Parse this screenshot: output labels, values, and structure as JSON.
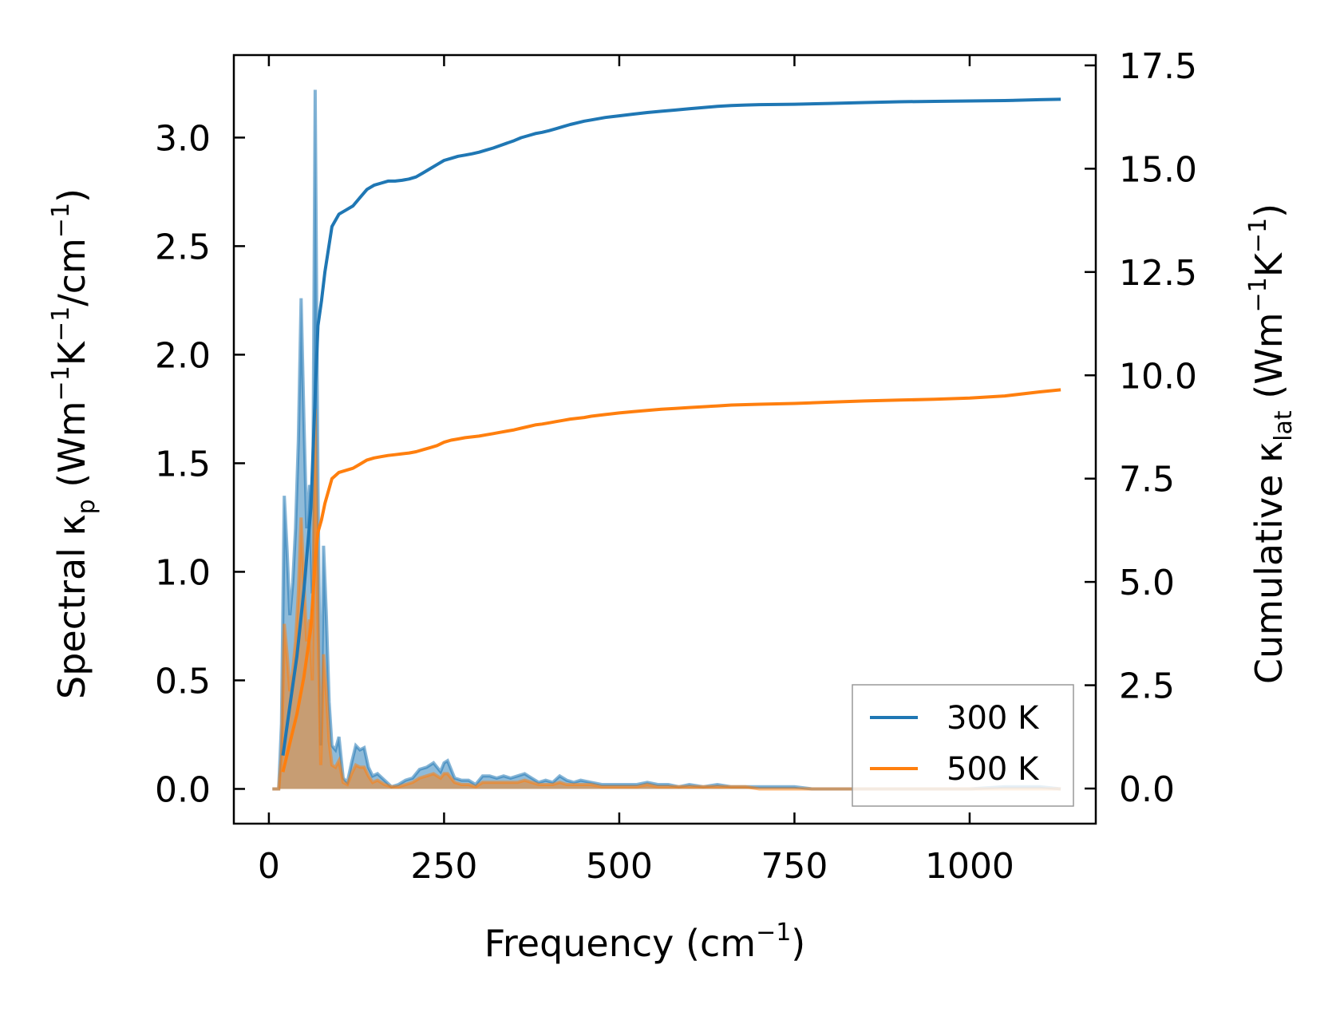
{
  "chart_data": {
    "type": "area",
    "x_axis": {
      "label": "Frequency (cm",
      "label_sup": "−1",
      "label_end": ")",
      "range": [
        -50,
        1180
      ],
      "ticks": [
        0,
        250,
        500,
        750,
        1000
      ],
      "tick_labels": [
        "0",
        "250",
        "500",
        "750",
        "1000"
      ]
    },
    "y_left": {
      "label_parts": [
        "Spectral κ",
        "p",
        " (Wm",
        "−1",
        "K",
        "−1",
        "/cm",
        "−1",
        ")"
      ],
      "range": [
        -0.16,
        3.38
      ],
      "ticks": [
        0.0,
        0.5,
        1.0,
        1.5,
        2.0,
        2.5,
        3.0
      ],
      "tick_labels": [
        "0.0",
        "0.5",
        "1.0",
        "1.5",
        "2.0",
        "2.5",
        "3.0"
      ]
    },
    "y_right": {
      "label_parts": [
        "Cumulative κ",
        "lat",
        " (Wm",
        "−1",
        "K",
        "−1",
        ")"
      ],
      "range": [
        -0.85,
        17.75
      ],
      "ticks": [
        0.0,
        2.5,
        5.0,
        7.5,
        10.0,
        12.5,
        15.0,
        17.5
      ],
      "tick_labels": [
        "0.0",
        "2.5",
        "5.0",
        "7.5",
        "10.0",
        "12.5",
        "15.0",
        "17.5"
      ]
    },
    "legend": {
      "placement": "lower-right",
      "entries": [
        "300 K",
        "500 K"
      ]
    },
    "series": [
      {
        "name": "300 K",
        "color": "#1f77b4",
        "spectral_x": [
          5,
          14,
          18,
          22,
          26,
          30,
          34,
          38,
          42,
          46,
          50,
          54,
          58,
          62,
          66,
          70,
          74,
          78,
          82,
          86,
          90,
          95,
          100,
          106,
          112,
          118,
          124,
          130,
          136,
          142,
          148,
          155,
          165,
          175,
          185,
          195,
          205,
          215,
          225,
          235,
          245,
          250,
          255,
          265,
          275,
          285,
          295,
          305,
          315,
          325,
          335,
          345,
          355,
          365,
          375,
          385,
          395,
          405,
          415,
          425,
          435,
          445,
          460,
          475,
          490,
          500,
          510,
          525,
          540,
          555,
          570,
          585,
          600,
          620,
          640,
          660,
          680,
          700,
          725,
          750,
          775,
          800,
          850,
          900,
          950,
          1000,
          1050,
          1080,
          1100,
          1130
        ],
        "spectral_y": [
          0.0,
          0.0,
          0.3,
          1.35,
          1.1,
          0.8,
          0.95,
          1.2,
          1.6,
          2.26,
          1.7,
          1.2,
          1.4,
          0.9,
          3.22,
          1.4,
          0.2,
          1.12,
          0.8,
          0.4,
          0.2,
          0.18,
          0.24,
          0.05,
          0.03,
          0.12,
          0.2,
          0.18,
          0.19,
          0.1,
          0.06,
          0.07,
          0.04,
          0.01,
          0.02,
          0.04,
          0.05,
          0.09,
          0.1,
          0.12,
          0.08,
          0.12,
          0.13,
          0.05,
          0.04,
          0.04,
          0.02,
          0.06,
          0.06,
          0.05,
          0.06,
          0.05,
          0.06,
          0.07,
          0.05,
          0.03,
          0.04,
          0.03,
          0.06,
          0.04,
          0.03,
          0.04,
          0.03,
          0.02,
          0.02,
          0.02,
          0.02,
          0.02,
          0.03,
          0.02,
          0.02,
          0.01,
          0.02,
          0.01,
          0.02,
          0.01,
          0.01,
          0.01,
          0.01,
          0.01,
          0.0,
          0.0,
          0.0,
          0.0,
          0.0,
          0.0,
          0.01,
          0.01,
          0.01,
          0.0
        ],
        "cumulative_x": [
          20,
          30,
          40,
          50,
          60,
          66,
          70,
          75,
          80,
          90,
          100,
          110,
          120,
          130,
          140,
          150,
          160,
          170,
          180,
          190,
          200,
          210,
          220,
          230,
          240,
          250,
          260,
          270,
          280,
          290,
          300,
          310,
          320,
          330,
          340,
          350,
          360,
          370,
          380,
          390,
          400,
          410,
          420,
          430,
          440,
          450,
          460,
          480,
          500,
          520,
          540,
          560,
          580,
          600,
          620,
          640,
          660,
          680,
          700,
          750,
          800,
          850,
          900,
          950,
          1000,
          1050,
          1100,
          1130
        ],
        "cumulative_y": [
          0.8,
          2.0,
          3.2,
          4.8,
          6.8,
          9.5,
          11.2,
          11.8,
          12.5,
          13.6,
          13.9,
          14.0,
          14.1,
          14.3,
          14.5,
          14.6,
          14.65,
          14.7,
          14.7,
          14.72,
          14.75,
          14.8,
          14.9,
          15.0,
          15.1,
          15.2,
          15.25,
          15.3,
          15.33,
          15.36,
          15.4,
          15.45,
          15.5,
          15.56,
          15.62,
          15.68,
          15.75,
          15.8,
          15.85,
          15.88,
          15.92,
          15.97,
          16.02,
          16.07,
          16.11,
          16.15,
          16.18,
          16.24,
          16.28,
          16.32,
          16.36,
          16.39,
          16.42,
          16.45,
          16.48,
          16.51,
          16.53,
          16.54,
          16.55,
          16.56,
          16.58,
          16.6,
          16.62,
          16.63,
          16.64,
          16.65,
          16.67,
          16.68
        ]
      },
      {
        "name": "500 K",
        "color": "#ff7f0e",
        "spectral_x": [
          5,
          14,
          18,
          22,
          26,
          30,
          34,
          38,
          42,
          46,
          50,
          54,
          58,
          62,
          66,
          70,
          74,
          78,
          82,
          86,
          90,
          95,
          100,
          106,
          112,
          118,
          124,
          130,
          136,
          142,
          148,
          155,
          165,
          175,
          185,
          195,
          205,
          215,
          225,
          235,
          245,
          250,
          255,
          265,
          275,
          285,
          295,
          305,
          315,
          325,
          335,
          345,
          355,
          365,
          375,
          385,
          395,
          405,
          415,
          425,
          435,
          445,
          460,
          475,
          490,
          500,
          510,
          525,
          540,
          555,
          570,
          585,
          600,
          620,
          640,
          660,
          680,
          700,
          725,
          750,
          775,
          800,
          850,
          900,
          950,
          1000,
          1050,
          1080,
          1100,
          1130
        ],
        "spectral_y": [
          0.0,
          0.0,
          0.15,
          0.76,
          0.62,
          0.45,
          0.54,
          0.68,
          0.9,
          1.25,
          0.95,
          0.68,
          0.78,
          0.5,
          1.75,
          0.78,
          0.11,
          0.62,
          0.45,
          0.22,
          0.11,
          0.1,
          0.13,
          0.03,
          0.02,
          0.07,
          0.11,
          0.1,
          0.1,
          0.06,
          0.03,
          0.04,
          0.02,
          0.01,
          0.01,
          0.02,
          0.03,
          0.05,
          0.06,
          0.07,
          0.05,
          0.07,
          0.07,
          0.03,
          0.02,
          0.02,
          0.01,
          0.03,
          0.03,
          0.03,
          0.03,
          0.03,
          0.03,
          0.04,
          0.03,
          0.02,
          0.02,
          0.02,
          0.03,
          0.02,
          0.02,
          0.02,
          0.02,
          0.01,
          0.01,
          0.01,
          0.01,
          0.01,
          0.02,
          0.01,
          0.01,
          0.01,
          0.01,
          0.01,
          0.01,
          0.01,
          0.01,
          0.0,
          0.0,
          0.0,
          0.0,
          0.0,
          0.0,
          0.0,
          0.0,
          0.0,
          0.0,
          0.0,
          0.0,
          0.0
        ],
        "cumulative_x": [
          20,
          30,
          40,
          50,
          60,
          66,
          70,
          75,
          80,
          90,
          100,
          110,
          120,
          130,
          140,
          150,
          160,
          170,
          180,
          190,
          200,
          210,
          220,
          230,
          240,
          250,
          260,
          270,
          280,
          290,
          300,
          310,
          320,
          330,
          340,
          350,
          360,
          370,
          380,
          390,
          400,
          410,
          420,
          430,
          440,
          450,
          460,
          480,
          500,
          520,
          540,
          560,
          580,
          600,
          620,
          640,
          660,
          680,
          700,
          750,
          800,
          850,
          900,
          950,
          1000,
          1050,
          1100,
          1130
        ],
        "cumulative_y": [
          0.4,
          1.1,
          1.8,
          2.7,
          3.9,
          5.5,
          6.2,
          6.5,
          6.9,
          7.5,
          7.65,
          7.7,
          7.75,
          7.85,
          7.95,
          8.0,
          8.03,
          8.06,
          8.08,
          8.1,
          8.12,
          8.15,
          8.2,
          8.25,
          8.3,
          8.38,
          8.43,
          8.46,
          8.49,
          8.51,
          8.53,
          8.56,
          8.59,
          8.62,
          8.65,
          8.68,
          8.72,
          8.76,
          8.8,
          8.82,
          8.85,
          8.88,
          8.91,
          8.94,
          8.96,
          8.98,
          9.01,
          9.05,
          9.09,
          9.12,
          9.15,
          9.18,
          9.2,
          9.22,
          9.24,
          9.26,
          9.28,
          9.29,
          9.3,
          9.32,
          9.35,
          9.38,
          9.4,
          9.42,
          9.45,
          9.5,
          9.6,
          9.65
        ]
      }
    ]
  }
}
